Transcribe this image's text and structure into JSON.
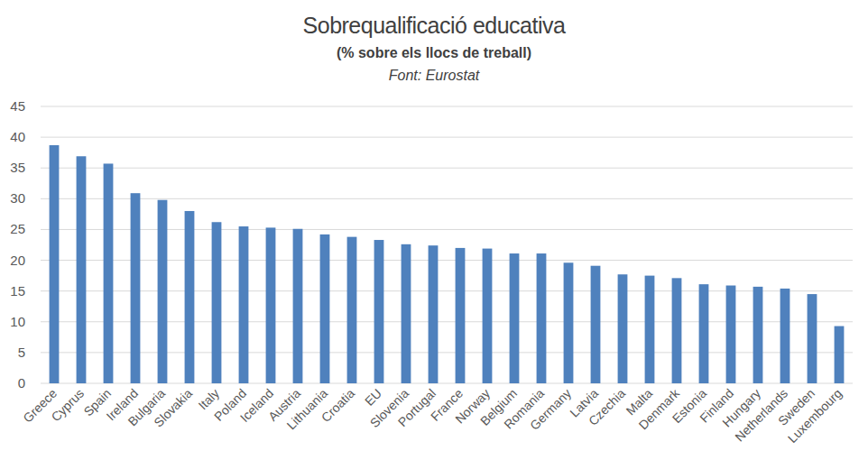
{
  "chart_data": {
    "type": "bar",
    "title": "Sobrequalificació educativa",
    "subtitle": "(% sobre els llocs de treball)",
    "source": "Font: Eurostat",
    "categories": [
      "Greece",
      "Cyprus",
      "Spain",
      "Ireland",
      "Bulgaria",
      "Slovakia",
      "Italy",
      "Poland",
      "Iceland",
      "Austria",
      "Lithuania",
      "Croatia",
      "EU",
      "Slovenia",
      "Portugal",
      "France",
      "Norway",
      "Belgium",
      "Romania",
      "Germany",
      "Latvia",
      "Czechia",
      "Malta",
      "Denmark",
      "Estonia",
      "Finland",
      "Hungary",
      "Netherlands",
      "Sweden",
      "Luxembourg"
    ],
    "values": [
      38.7,
      36.9,
      35.7,
      30.9,
      29.8,
      28.0,
      26.2,
      25.5,
      25.3,
      25.1,
      24.2,
      23.8,
      23.3,
      22.6,
      22.4,
      22.0,
      21.9,
      21.1,
      21.1,
      19.6,
      19.1,
      17.7,
      17.5,
      17.1,
      16.1,
      15.9,
      15.7,
      15.4,
      14.5,
      9.3
    ],
    "color": "#4f81bd",
    "ylim": [
      0,
      45
    ],
    "yticks": [
      0,
      5,
      10,
      15,
      20,
      25,
      30,
      35,
      40,
      45
    ],
    "grid": true
  }
}
